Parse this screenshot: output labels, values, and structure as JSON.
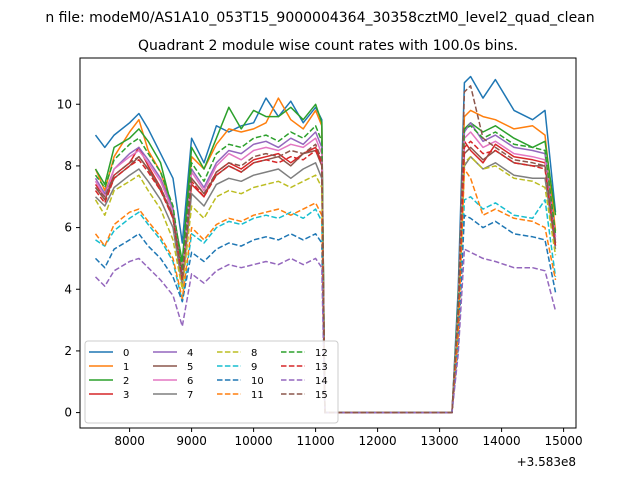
{
  "figure": {
    "suptitle": "n file: modeM0/AS1A10_053T15_9000004364_30358cztM0_level2_quad_clean",
    "offset_text": "+3.583e8"
  },
  "chart_data": {
    "type": "line",
    "title": "Quadrant 2 module wise count rates with 100.0s bins.",
    "xlabel": "",
    "ylabel": "",
    "xlim": [
      7200,
      15200
    ],
    "ylim": [
      -0.5,
      11.5
    ],
    "x_offset": 358300000,
    "xticks": [
      8000,
      9000,
      10000,
      11000,
      12000,
      13000,
      14000,
      15000
    ],
    "yticks": [
      0,
      2,
      4,
      6,
      8,
      10
    ],
    "grid": false,
    "legend_position": "lower-left",
    "legend_columns": 4,
    "series": [
      {
        "name": "0",
        "color": "#1f77b4",
        "dash": "solid",
        "x": [
          7450,
          7600,
          7750,
          8000,
          8150,
          8300,
          8500,
          8700,
          8850,
          9000,
          9200,
          9400,
          9600,
          9800,
          10000,
          10200,
          10400,
          10600,
          10800,
          11000,
          11100,
          11150,
          11300,
          13200,
          13300,
          13400,
          13500,
          13700,
          13900,
          14200,
          14500,
          14700,
          14870
        ],
        "y": [
          9.0,
          8.6,
          9.0,
          9.4,
          9.7,
          9.2,
          8.4,
          7.6,
          5.5,
          8.9,
          8.1,
          9.3,
          9.1,
          9.3,
          9.4,
          10.2,
          9.6,
          10.1,
          9.4,
          9.9,
          9.5,
          0.0,
          0.0,
          0.0,
          4.0,
          10.7,
          10.9,
          10.2,
          10.8,
          9.8,
          9.5,
          9.8,
          6.5
        ]
      },
      {
        "name": "1",
        "color": "#ff7f0e",
        "dash": "solid",
        "x": [
          7450,
          7600,
          7750,
          8000,
          8150,
          8300,
          8500,
          8700,
          8850,
          9000,
          9200,
          9400,
          9600,
          9800,
          10000,
          10200,
          10400,
          10600,
          10800,
          11000,
          11100,
          11150,
          11300,
          13200,
          13300,
          13400,
          13500,
          13700,
          13900,
          14200,
          14500,
          14700,
          14870
        ],
        "y": [
          7.9,
          7.2,
          8.3,
          9.1,
          9.5,
          8.5,
          7.8,
          6.6,
          4.6,
          8.3,
          7.9,
          8.7,
          9.2,
          9.1,
          9.2,
          9.4,
          10.2,
          9.5,
          9.2,
          9.8,
          9.3,
          0.0,
          0.0,
          0.0,
          3.5,
          9.6,
          9.8,
          9.6,
          9.5,
          9.2,
          9.3,
          9.0,
          5.9
        ]
      },
      {
        "name": "2",
        "color": "#2ca02c",
        "dash": "solid",
        "x": [
          7450,
          7600,
          7750,
          8000,
          8150,
          8300,
          8500,
          8700,
          8850,
          9000,
          9200,
          9400,
          9600,
          9800,
          10000,
          10200,
          10400,
          10600,
          10800,
          11000,
          11100,
          11150,
          11300,
          13200,
          13300,
          13400,
          13500,
          13700,
          13900,
          14200,
          14500,
          14700,
          14870
        ],
        "y": [
          7.9,
          7.4,
          8.6,
          8.9,
          9.2,
          8.8,
          8.1,
          6.5,
          4.9,
          8.6,
          7.9,
          8.9,
          9.9,
          9.2,
          9.8,
          9.6,
          9.6,
          9.9,
          9.5,
          10.0,
          9.4,
          0.0,
          0.0,
          0.0,
          3.6,
          9.2,
          9.4,
          9.1,
          9.3,
          8.9,
          8.6,
          8.8,
          6.4
        ]
      },
      {
        "name": "3",
        "color": "#d62728",
        "dash": "solid",
        "x": [
          7450,
          7600,
          7750,
          8000,
          8150,
          8300,
          8500,
          8700,
          8850,
          9000,
          9200,
          9400,
          9600,
          9800,
          10000,
          10200,
          10400,
          10600,
          10800,
          11000,
          11100,
          11150,
          11300,
          13200,
          13300,
          13400,
          13500,
          13700,
          13900,
          14200,
          14500,
          14700,
          14870
        ],
        "y": [
          7.4,
          7.0,
          7.7,
          8.1,
          8.6,
          8.0,
          7.3,
          6.3,
          4.4,
          7.4,
          7.0,
          7.8,
          8.1,
          7.9,
          8.2,
          8.3,
          8.4,
          8.1,
          8.4,
          8.6,
          8.1,
          0.0,
          0.0,
          0.0,
          3.2,
          8.8,
          8.5,
          8.1,
          8.7,
          8.3,
          8.2,
          8.1,
          5.4
        ]
      },
      {
        "name": "4",
        "color": "#9467bd",
        "dash": "solid",
        "x": [
          7450,
          7600,
          7750,
          8000,
          8150,
          8300,
          8500,
          8700,
          8850,
          9000,
          9200,
          9400,
          9600,
          9800,
          10000,
          10200,
          10400,
          10600,
          10800,
          11000,
          11100,
          11150,
          11300,
          13200,
          13300,
          13400,
          13500,
          13700,
          13900,
          14200,
          14500,
          14700,
          14870
        ],
        "y": [
          7.6,
          7.1,
          7.9,
          8.4,
          8.6,
          8.2,
          7.6,
          6.6,
          4.5,
          7.9,
          7.3,
          8.1,
          8.5,
          8.4,
          8.7,
          8.8,
          8.6,
          8.9,
          8.7,
          9.1,
          8.6,
          0.0,
          0.0,
          0.0,
          3.4,
          9.1,
          9.4,
          8.8,
          9.0,
          8.6,
          8.5,
          8.4,
          5.7
        ]
      },
      {
        "name": "5",
        "color": "#8c564b",
        "dash": "solid",
        "x": [
          7450,
          7600,
          7750,
          8000,
          8150,
          8300,
          8500,
          8700,
          8850,
          9000,
          9200,
          9400,
          9600,
          9800,
          10000,
          10200,
          10400,
          10600,
          10800,
          11000,
          11100,
          11150,
          11300,
          13200,
          13300,
          13400,
          13500,
          13700,
          13900,
          14200,
          14500,
          14700,
          14870
        ],
        "y": [
          7.3,
          6.9,
          7.6,
          8.0,
          8.3,
          7.9,
          7.2,
          6.4,
          4.3,
          7.6,
          7.1,
          7.7,
          8.0,
          7.8,
          8.1,
          8.2,
          8.3,
          8.0,
          8.4,
          8.5,
          8.0,
          0.0,
          0.0,
          0.0,
          3.2,
          8.4,
          8.6,
          8.2,
          8.5,
          8.1,
          8.0,
          8.0,
          5.5
        ]
      },
      {
        "name": "6",
        "color": "#e377c2",
        "dash": "solid",
        "x": [
          7450,
          7600,
          7750,
          8000,
          8150,
          8300,
          8500,
          8700,
          8850,
          9000,
          9200,
          9400,
          9600,
          9800,
          10000,
          10200,
          10400,
          10600,
          10800,
          11000,
          11100,
          11150,
          11300,
          13200,
          13300,
          13400,
          13500,
          13700,
          13900,
          14200,
          14500,
          14700,
          14870
        ],
        "y": [
          7.5,
          7.0,
          7.9,
          8.3,
          8.5,
          8.1,
          7.5,
          6.5,
          4.4,
          7.8,
          7.2,
          8.0,
          8.4,
          8.2,
          8.5,
          8.6,
          8.5,
          8.7,
          8.6,
          8.9,
          8.4,
          0.0,
          0.0,
          0.0,
          3.4,
          8.9,
          9.1,
          8.6,
          8.8,
          8.4,
          8.3,
          8.2,
          5.6
        ]
      },
      {
        "name": "7",
        "color": "#7f7f7f",
        "dash": "solid",
        "x": [
          7450,
          7600,
          7750,
          8000,
          8150,
          8300,
          8500,
          8700,
          8850,
          9000,
          9200,
          9400,
          9600,
          9800,
          10000,
          10200,
          10400,
          10600,
          10800,
          11000,
          11100,
          11150,
          11300,
          13200,
          13300,
          13400,
          13500,
          13700,
          13900,
          14200,
          14500,
          14700,
          14870
        ],
        "y": [
          7.0,
          6.7,
          7.3,
          7.7,
          7.9,
          7.5,
          6.9,
          6.0,
          4.1,
          7.1,
          6.7,
          7.4,
          7.6,
          7.5,
          7.7,
          7.8,
          7.9,
          7.6,
          7.9,
          8.1,
          7.6,
          0.0,
          0.0,
          0.0,
          3.0,
          8.0,
          8.3,
          7.9,
          8.1,
          7.7,
          7.6,
          7.6,
          5.3
        ]
      },
      {
        "name": "8",
        "color": "#bcbd22",
        "dash": "dashed",
        "x": [
          7450,
          7600,
          7750,
          8000,
          8150,
          8300,
          8500,
          8700,
          8850,
          9000,
          9200,
          9400,
          9600,
          9800,
          10000,
          10200,
          10400,
          10600,
          10800,
          11000,
          11100,
          11150,
          11300,
          13200,
          13300,
          13400,
          13500,
          13700,
          13900,
          14200,
          14500,
          14700,
          14870
        ],
        "y": [
          6.9,
          6.4,
          7.2,
          7.5,
          7.7,
          7.2,
          6.6,
          5.6,
          4.0,
          6.7,
          6.3,
          7.0,
          7.2,
          7.1,
          7.3,
          7.4,
          7.5,
          7.3,
          7.5,
          7.7,
          7.3,
          0.0,
          0.0,
          0.0,
          2.9,
          8.1,
          8.3,
          7.9,
          8.0,
          7.6,
          7.5,
          7.3,
          5.1
        ]
      },
      {
        "name": "9",
        "color": "#17becf",
        "dash": "dashed",
        "x": [
          7450,
          7600,
          7750,
          8000,
          8150,
          8300,
          8500,
          8700,
          8850,
          9000,
          9200,
          9400,
          9600,
          9800,
          10000,
          10200,
          10400,
          10600,
          10800,
          11000,
          11100,
          11150,
          11300,
          13200,
          13300,
          13400,
          13500,
          13700,
          13900,
          14200,
          14500,
          14700,
          14870
        ],
        "y": [
          5.6,
          5.4,
          5.9,
          6.3,
          6.5,
          6.1,
          5.6,
          4.9,
          3.6,
          5.8,
          5.5,
          6.0,
          6.2,
          6.1,
          6.3,
          6.4,
          6.3,
          6.5,
          6.3,
          6.6,
          6.2,
          0.0,
          0.0,
          0.0,
          2.4,
          6.9,
          7.0,
          6.6,
          6.8,
          6.4,
          6.3,
          6.9,
          4.4
        ]
      },
      {
        "name": "10",
        "color": "#1f77b4",
        "dash": "dashed",
        "x": [
          7450,
          7600,
          7750,
          8000,
          8150,
          8300,
          8500,
          8700,
          8850,
          9000,
          9200,
          9400,
          9600,
          9800,
          10000,
          10200,
          10400,
          10600,
          10800,
          11000,
          11100,
          11150,
          11300,
          13200,
          13300,
          13400,
          13500,
          13700,
          13900,
          14200,
          14500,
          14700,
          14870
        ],
        "y": [
          5.0,
          4.7,
          5.3,
          5.6,
          5.8,
          5.4,
          5.0,
          4.4,
          3.6,
          5.2,
          4.9,
          5.3,
          5.5,
          5.4,
          5.6,
          5.7,
          5.6,
          5.8,
          5.6,
          5.8,
          5.5,
          0.0,
          0.0,
          0.0,
          2.1,
          6.4,
          6.3,
          6.0,
          6.2,
          5.8,
          5.7,
          5.6,
          3.9
        ]
      },
      {
        "name": "11",
        "color": "#ff7f0e",
        "dash": "dashed",
        "x": [
          7450,
          7600,
          7750,
          8000,
          8150,
          8300,
          8500,
          8700,
          8850,
          9000,
          9200,
          9400,
          9600,
          9800,
          10000,
          10200,
          10400,
          10600,
          10800,
          11000,
          11100,
          11150,
          11300,
          13200,
          13300,
          13400,
          13500,
          13700,
          13900,
          14200,
          14500,
          14700,
          14870
        ],
        "y": [
          5.8,
          5.4,
          6.1,
          6.5,
          6.6,
          6.2,
          5.7,
          5.0,
          3.7,
          6.0,
          5.6,
          6.1,
          6.3,
          6.2,
          6.4,
          6.5,
          6.6,
          6.4,
          6.6,
          6.8,
          6.4,
          0.0,
          0.0,
          0.0,
          2.5,
          7.9,
          7.6,
          6.4,
          6.6,
          6.3,
          6.2,
          6.0,
          4.3
        ]
      },
      {
        "name": "12",
        "color": "#2ca02c",
        "dash": "dashed",
        "x": [
          7450,
          7600,
          7750,
          8000,
          8150,
          8300,
          8500,
          8700,
          8850,
          9000,
          9200,
          9400,
          9600,
          9800,
          10000,
          10200,
          10400,
          10600,
          10800,
          11000,
          11100,
          11150,
          11300,
          13200,
          13300,
          13400,
          13500,
          13700,
          13900,
          14200,
          14500,
          14700,
          14870
        ],
        "y": [
          7.7,
          7.3,
          8.2,
          8.7,
          8.9,
          8.4,
          7.8,
          6.7,
          4.6,
          8.1,
          7.5,
          8.4,
          8.7,
          8.6,
          8.9,
          9.0,
          8.8,
          9.1,
          8.9,
          9.3,
          8.8,
          0.0,
          0.0,
          0.0,
          3.5,
          9.2,
          9.3,
          8.9,
          9.1,
          8.7,
          8.6,
          8.5,
          5.8
        ]
      },
      {
        "name": "13",
        "color": "#d62728",
        "dash": "dashed",
        "x": [
          7450,
          7600,
          7750,
          8000,
          8150,
          8300,
          8500,
          8700,
          8850,
          9000,
          9200,
          9400,
          9600,
          9800,
          10000,
          10200,
          10400,
          10600,
          10800,
          11000,
          11100,
          11150,
          11300,
          13200,
          13300,
          13400,
          13500,
          13700,
          13900,
          14200,
          14500,
          14700,
          14870
        ],
        "y": [
          7.2,
          6.8,
          7.6,
          8.0,
          8.2,
          7.8,
          7.2,
          6.3,
          4.3,
          7.5,
          7.0,
          7.7,
          8.0,
          7.8,
          8.1,
          8.2,
          8.1,
          8.3,
          8.2,
          8.5,
          8.1,
          0.0,
          0.0,
          0.0,
          3.2,
          8.6,
          8.8,
          8.4,
          8.5,
          8.1,
          8.0,
          7.9,
          5.4
        ]
      },
      {
        "name": "14",
        "color": "#9467bd",
        "dash": "dashed",
        "x": [
          7450,
          7600,
          7750,
          8000,
          8150,
          8300,
          8500,
          8700,
          8850,
          9000,
          9200,
          9400,
          9600,
          9800,
          10000,
          10200,
          10400,
          10600,
          10800,
          11000,
          11100,
          11150,
          11300,
          13200,
          13300,
          13400,
          13500,
          13700,
          13900,
          14200,
          14500,
          14700,
          14870
        ],
        "y": [
          4.4,
          4.1,
          4.6,
          4.9,
          5.0,
          4.7,
          4.3,
          3.8,
          2.8,
          4.5,
          4.2,
          4.6,
          4.8,
          4.7,
          4.8,
          4.9,
          4.8,
          5.0,
          4.8,
          5.0,
          4.7,
          0.0,
          0.0,
          0.0,
          1.9,
          5.3,
          5.2,
          5.0,
          4.9,
          4.7,
          4.7,
          4.6,
          3.3
        ]
      },
      {
        "name": "15",
        "color": "#8c564b",
        "dash": "dashed",
        "x": [
          7450,
          7600,
          7750,
          8000,
          8150,
          8300,
          8500,
          8700,
          8850,
          9000,
          9200,
          9400,
          9600,
          9800,
          10000,
          10200,
          10400,
          10600,
          10800,
          11000,
          11100,
          11150,
          11300,
          13200,
          13300,
          13400,
          13500,
          13700,
          13900,
          14200,
          14500,
          14700,
          14870
        ],
        "y": [
          7.3,
          7.0,
          7.7,
          8.1,
          8.3,
          7.9,
          7.3,
          6.4,
          4.4,
          7.6,
          7.1,
          7.8,
          8.1,
          8.0,
          8.3,
          8.4,
          8.3,
          8.5,
          8.4,
          8.7,
          8.2,
          0.0,
          0.0,
          0.0,
          3.3,
          10.4,
          10.6,
          8.9,
          8.6,
          8.2,
          8.1,
          8.0,
          5.5
        ]
      }
    ]
  }
}
